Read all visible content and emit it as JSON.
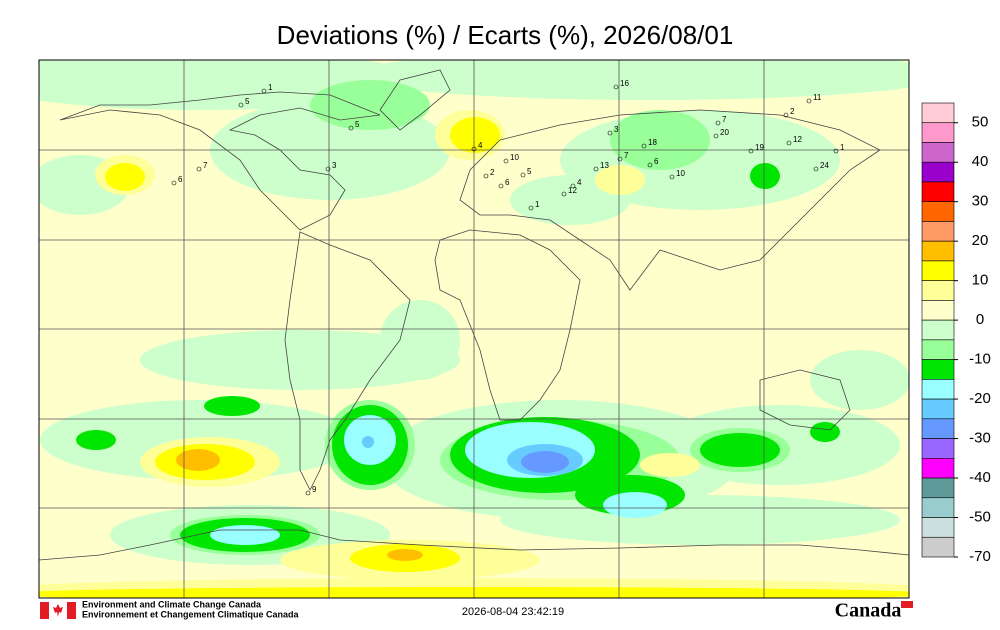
{
  "title": "Deviations (%) / Ecarts (%), 2026/08/01",
  "colorscale": {
    "colors": [
      "#ffccd5",
      "#ff99cc",
      "#cc66cc",
      "#9900cc",
      "#ff0000",
      "#ff6600",
      "#ff9966",
      "#ffbf00",
      "#ffff00",
      "#ffff99",
      "#ffffcc",
      "#ccffcc",
      "#99ff99",
      "#00e600",
      "#99ffff",
      "#66ccff",
      "#6699ff",
      "#9966ff",
      "#ff00ff",
      "#5f9a9a",
      "#99cccc",
      "#cce0e0",
      "#cccccc"
    ],
    "ticks": [
      50,
      40,
      30,
      20,
      10,
      0,
      -10,
      -20,
      -30,
      -40,
      -50,
      -70
    ]
  },
  "stations": [
    "1",
    "5",
    "5",
    "3",
    "7",
    "6",
    "4",
    "2",
    "10",
    "6",
    "13",
    "3",
    "18",
    "20",
    "7",
    "19",
    "12",
    "11",
    "2",
    "24",
    "10",
    "6",
    "16",
    "1",
    "9",
    "4",
    "12",
    "7",
    "5",
    "1"
  ],
  "footer": {
    "agency_en": "Environment and Climate Change Canada",
    "agency_fr": "Environnement et Changement Climatique Canada",
    "timestamp": "2026-08-04 23:42:19",
    "wordmark": "Canada"
  }
}
